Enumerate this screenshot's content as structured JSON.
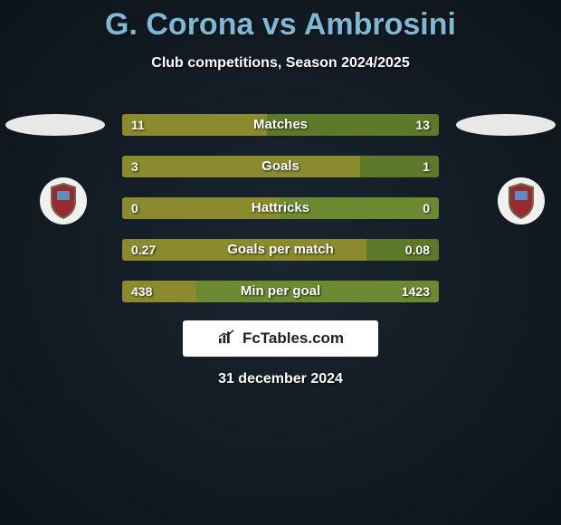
{
  "title": "G. Corona vs Ambrosini",
  "subtitle": "Club competitions, Season 2024/2025",
  "date": "31 december 2024",
  "logo": {
    "text": "FcTables.com"
  },
  "colors": {
    "left_bar": "#8b8a2e",
    "right_bar": "#5d7a2a",
    "right_bar_light": "#6b8a32",
    "background_dark": "#0d1419",
    "title": "#7fb8d4"
  },
  "badge": {
    "circle_bg": "#f0f0f0",
    "shield_fill": "#9a2830",
    "shield_stroke": "#6a6a46",
    "inner_fill": "#5a8fc0"
  },
  "stats": [
    {
      "label": "Matches",
      "left_val": "11",
      "right_val": "13",
      "left_pct": 45.8,
      "right_color": "#5d7a2a"
    },
    {
      "label": "Goals",
      "left_val": "3",
      "right_val": "1",
      "left_pct": 75.0,
      "right_color": "#5d7a2a"
    },
    {
      "label": "Hattricks",
      "left_val": "0",
      "right_val": "0",
      "left_pct": 50.0,
      "right_color": "#6b8a32"
    },
    {
      "label": "Goals per match",
      "left_val": "0.27",
      "right_val": "0.08",
      "left_pct": 77.1,
      "right_color": "#5d7a2a"
    },
    {
      "label": "Min per goal",
      "left_val": "438",
      "right_val": "1423",
      "left_pct": 23.5,
      "right_color": "#6b8a32"
    }
  ]
}
